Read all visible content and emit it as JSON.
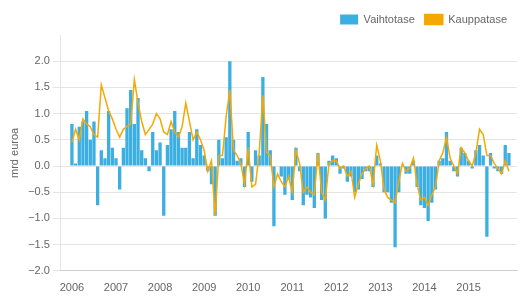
{
  "chart_data": {
    "type": "bar",
    "ylabel": "mrd euroa",
    "x": [
      2006,
      2006.0833333333,
      2006.1666666667,
      2006.25,
      2006.3333333333,
      2006.4166666667,
      2006.5,
      2006.5833333333,
      2006.6666666667,
      2006.75,
      2006.8333333333,
      2006.9166666667,
      2007,
      2007.0833333333,
      2007.1666666667,
      2007.25,
      2007.3333333333,
      2007.4166666667,
      2007.5,
      2007.5833333333,
      2007.6666666667,
      2007.75,
      2007.8333333333,
      2007.9166666667,
      2008,
      2008.0833333333,
      2008.1666666667,
      2008.25,
      2008.3333333333,
      2008.4166666667,
      2008.5,
      2008.5833333333,
      2008.6666666667,
      2008.75,
      2008.8333333333,
      2008.9166666667,
      2009,
      2009.0833333333,
      2009.1666666667,
      2009.25,
      2009.3333333333,
      2009.4166666667,
      2009.5,
      2009.5833333333,
      2009.6666666667,
      2009.75,
      2009.8333333333,
      2009.9166666667,
      2010,
      2010.0833333333,
      2010.1666666667,
      2010.25,
      2010.3333333333,
      2010.4166666667,
      2010.5,
      2010.5833333333,
      2010.6666666667,
      2010.75,
      2010.8333333333,
      2010.9166666667,
      2011,
      2011.0833333333,
      2011.1666666667,
      2011.25,
      2011.3333333333,
      2011.4166666667,
      2011.5,
      2011.5833333333,
      2011.6666666667,
      2011.75,
      2011.8333333333,
      2011.9166666667,
      2012,
      2012.0833333333,
      2012.1666666667,
      2012.25,
      2012.3333333333,
      2012.4166666667,
      2012.5,
      2012.5833333333,
      2012.6666666667,
      2012.75,
      2012.8333333333,
      2012.9166666667,
      2013,
      2013.0833333333,
      2013.1666666667,
      2013.25,
      2013.3333333333,
      2013.4166666667,
      2013.5,
      2013.5833333333,
      2013.6666666667,
      2013.75,
      2013.8333333333,
      2013.9166666667,
      2014,
      2014.0833333333,
      2014.1666666667,
      2014.25,
      2014.3333333333,
      2014.4166666667,
      2014.5,
      2014.5833333333,
      2014.6666666667,
      2014.75,
      2014.8333333333,
      2014.9166666667,
      2015,
      2015.0833333333,
      2015.1666666667,
      2015.25,
      2015.3333333333,
      2015.4166666667,
      2015.5,
      2015.5833333333,
      2015.6666666667,
      2015.75,
      2015.8333333333,
      2015.9166666667
    ],
    "series": [
      {
        "name": "Vaihtotase",
        "type": "bar",
        "color": "#3baee2",
        "values": [
          0.8,
          0.05,
          0.75,
          0.85,
          1.05,
          0.5,
          0.85,
          -0.75,
          0.3,
          0.15,
          1.05,
          0.35,
          0.15,
          -0.45,
          0.35,
          1.1,
          1.45,
          0.8,
          1.3,
          0.3,
          0.15,
          -0.1,
          0.65,
          0.3,
          0.45,
          -0.95,
          0.4,
          0.7,
          1.05,
          0.65,
          0.35,
          0.35,
          0.65,
          0.15,
          0.7,
          0.4,
          0.2,
          -0.1,
          -0.35,
          -0.95,
          0.5,
          0.15,
          0.55,
          2.0,
          0.5,
          0.1,
          0.15,
          -0.4,
          0.65,
          -0.3,
          0.3,
          0.2,
          1.7,
          0.8,
          0.3,
          -1.15,
          0.0,
          -0.2,
          -0.55,
          -0.25,
          -0.65,
          0.35,
          -0.1,
          -0.75,
          -0.55,
          -0.6,
          -0.8,
          0.25,
          -0.65,
          -1.0,
          0.1,
          0.2,
          0.15,
          -0.15,
          -0.05,
          -0.3,
          -0.2,
          -0.5,
          -0.45,
          -0.25,
          -0.1,
          -0.1,
          -0.4,
          0.2,
          0.05,
          -0.5,
          -0.5,
          -0.7,
          -1.55,
          -0.5,
          0.0,
          -0.15,
          -0.15,
          0.1,
          -0.4,
          -0.75,
          -0.8,
          -1.05,
          -0.7,
          -0.45,
          0.1,
          0.15,
          0.65,
          0.1,
          -0.1,
          -0.2,
          0.35,
          0.25,
          0.1,
          -0.05,
          0.3,
          0.4,
          0.2,
          -1.35,
          0.25,
          -0.05,
          -0.1,
          -0.15,
          0.4,
          0.25
        ]
      },
      {
        "name": "Kauppatase",
        "type": "line",
        "color": "#f5a800",
        "values": [
          0.45,
          0.7,
          0.5,
          0.9,
          0.8,
          0.75,
          0.6,
          0.55,
          1.55,
          1.3,
          1.05,
          0.9,
          0.7,
          0.55,
          0.7,
          0.75,
          0.8,
          1.65,
          1.2,
          0.85,
          0.6,
          0.7,
          0.8,
          1.0,
          0.9,
          0.65,
          0.6,
          0.85,
          0.65,
          0.55,
          0.75,
          1.2,
          0.85,
          0.5,
          0.65,
          0.5,
          0.3,
          -0.1,
          0.1,
          -0.95,
          0.2,
          0.2,
          0.95,
          1.45,
          0.3,
          0.2,
          0.05,
          -0.35,
          0.35,
          -0.4,
          -0.35,
          0.25,
          1.35,
          0.25,
          0.2,
          -0.4,
          -0.15,
          -0.3,
          -0.4,
          -0.2,
          -0.5,
          0.3,
          0.05,
          -0.5,
          -0.4,
          -0.5,
          -0.55,
          0.25,
          -0.5,
          -0.65,
          0.05,
          0.1,
          0.1,
          -0.05,
          0.0,
          -0.2,
          -0.1,
          -0.6,
          -0.35,
          -0.15,
          -0.05,
          0.0,
          -0.35,
          0.4,
          0.1,
          -0.45,
          -0.6,
          -0.65,
          -0.7,
          -0.3,
          0.05,
          -0.1,
          -0.05,
          0.15,
          -0.35,
          -0.65,
          -0.6,
          -0.75,
          -0.55,
          -0.4,
          0.1,
          0.25,
          0.55,
          0.15,
          0.0,
          -0.15,
          0.35,
          0.25,
          0.1,
          0.0,
          0.25,
          0.7,
          0.6,
          0.2,
          0.2,
          0.05,
          -0.05,
          -0.15,
          0.1,
          -0.1
        ]
      }
    ],
    "xlim": [
      2005.75,
      2016.1
    ],
    "xticks": [
      2006,
      2007,
      2008,
      2009,
      2010,
      2011,
      2012,
      2013,
      2014,
      2015
    ],
    "ylim": [
      -2.0,
      2.5
    ],
    "yticks": [
      {
        "value": -2.0,
        "label": "−2.0"
      },
      {
        "value": -1.5,
        "label": "−1.5"
      },
      {
        "value": -1.0,
        "label": "−1.0"
      },
      {
        "value": -0.5,
        "label": "−0.5"
      },
      {
        "value": 0.0,
        "label": "0.0"
      },
      {
        "value": 0.5,
        "label": "0.5"
      },
      {
        "value": 1.0,
        "label": "1.0"
      },
      {
        "value": 1.5,
        "label": "1.5"
      },
      {
        "value": 2.0,
        "label": "2.0"
      }
    ],
    "grid": "y",
    "legend": "upper right"
  }
}
